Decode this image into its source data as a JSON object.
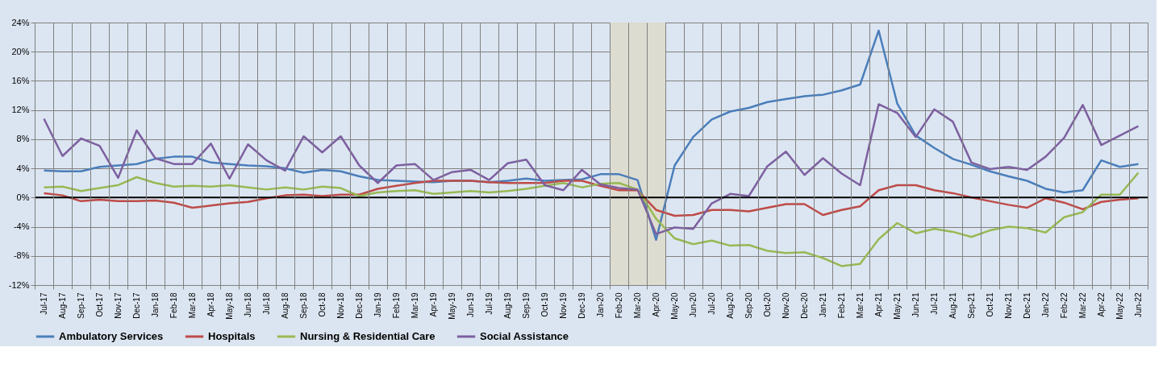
{
  "chart_data": {
    "type": "line",
    "categories": [
      "Jul-17",
      "Aug-17",
      "Sep-17",
      "Oct-17",
      "Nov-17",
      "Dec-17",
      "Jan-18",
      "Feb-18",
      "Mar-18",
      "Apr-18",
      "May-18",
      "Jun-18",
      "Jul-18",
      "Aug-18",
      "Sep-18",
      "Oct-18",
      "Nov-18",
      "Dec-18",
      "Jan-19",
      "Feb-19",
      "Mar-19",
      "Apr-19",
      "May-19",
      "Jun-19",
      "Jul-19",
      "Aug-19",
      "Sep-19",
      "Oct-19",
      "Nov-19",
      "Dec-19",
      "Jan-20",
      "Feb-20",
      "Mar-20",
      "Apr-20",
      "May-20",
      "Jun-20",
      "Jul-20",
      "Aug-20",
      "Sep-20",
      "Oct-20",
      "Nov-20",
      "Dec-20",
      "Jan-21",
      "Feb-21",
      "Mar-21",
      "Apr-21",
      "May-21",
      "Jun-21",
      "Jul-21",
      "Aug-21",
      "Sep-21",
      "Oct-21",
      "Nov-21",
      "Dec-21",
      "Jan-22",
      "Feb-22",
      "Mar-22",
      "Apr-22",
      "May-22",
      "Jun-22"
    ],
    "series": [
      {
        "name": "Ambulatory Services",
        "color": "#4a7ebb",
        "values": [
          3.7,
          3.6,
          3.6,
          4.2,
          4.4,
          4.6,
          5.3,
          5.6,
          5.6,
          4.8,
          4.6,
          4.4,
          4.3,
          4.0,
          3.4,
          3.8,
          3.6,
          2.9,
          2.4,
          2.3,
          2.2,
          2.1,
          2.3,
          2.3,
          2.1,
          2.3,
          2.6,
          2.3,
          2.4,
          2.5,
          3.2,
          3.2,
          2.4,
          -5.8,
          4.4,
          8.3,
          10.7,
          11.8,
          12.3,
          13.1,
          13.5,
          13.9,
          14.1,
          14.7,
          15.5,
          22.9,
          12.9,
          8.5,
          6.8,
          5.3,
          4.5,
          3.6,
          2.9,
          2.3,
          1.2,
          0.7,
          1.0,
          5.1,
          4.2,
          4.6
        ]
      },
      {
        "name": "Hospitals",
        "color": "#be4b48",
        "values": [
          0.6,
          0.3,
          -0.5,
          -0.3,
          -0.5,
          -0.5,
          -0.4,
          -0.7,
          -1.4,
          -1.1,
          -0.8,
          -0.6,
          -0.1,
          0.3,
          0.4,
          0.2,
          0.4,
          0.4,
          1.2,
          1.6,
          2.0,
          2.3,
          2.3,
          2.3,
          2.1,
          2.0,
          2.0,
          2.0,
          2.3,
          2.3,
          1.6,
          1.0,
          1.0,
          -1.7,
          -2.5,
          -2.4,
          -1.7,
          -1.7,
          -1.9,
          -1.4,
          -0.9,
          -0.9,
          -2.4,
          -1.7,
          -1.2,
          1.0,
          1.7,
          1.7,
          1.0,
          0.6,
          0.0,
          -0.5,
          -1.0,
          -1.4,
          -0.1,
          -0.7,
          -1.6,
          -0.6,
          -0.3,
          -0.1
        ]
      },
      {
        "name": "Nursing & Residential Care",
        "color": "#98b954",
        "values": [
          1.4,
          1.5,
          0.9,
          1.3,
          1.7,
          2.8,
          2.0,
          1.5,
          1.6,
          1.5,
          1.7,
          1.4,
          1.1,
          1.4,
          1.1,
          1.5,
          1.3,
          0.2,
          0.7,
          0.9,
          1.0,
          0.5,
          0.7,
          0.9,
          0.7,
          0.9,
          1.2,
          1.6,
          2.0,
          1.4,
          1.9,
          2.0,
          1.1,
          -2.9,
          -5.6,
          -6.4,
          -5.9,
          -6.6,
          -6.5,
          -7.3,
          -7.6,
          -7.5,
          -8.3,
          -9.4,
          -9.1,
          -5.7,
          -3.5,
          -4.9,
          -4.3,
          -4.7,
          -5.4,
          -4.5,
          -4.0,
          -4.2,
          -4.8,
          -2.7,
          -2.0,
          0.4,
          0.4,
          3.4
        ]
      },
      {
        "name": "Social Assistance",
        "color": "#7d60a0",
        "values": [
          10.8,
          5.7,
          8.1,
          7.1,
          2.7,
          9.2,
          5.4,
          4.6,
          4.6,
          7.4,
          2.6,
          7.3,
          5.1,
          3.7,
          8.4,
          6.2,
          8.4,
          4.4,
          2.0,
          4.4,
          4.6,
          2.4,
          3.5,
          3.8,
          2.4,
          4.7,
          5.2,
          1.7,
          1.0,
          3.8,
          1.8,
          1.3,
          1.1,
          -5.0,
          -4.1,
          -4.3,
          -0.8,
          0.5,
          0.2,
          4.3,
          6.3,
          3.1,
          5.4,
          3.3,
          1.7,
          12.8,
          11.6,
          8.3,
          12.1,
          10.4,
          4.8,
          3.9,
          4.2,
          3.8,
          5.6,
          8.2,
          12.7,
          7.2,
          8.5,
          9.8
        ]
      }
    ],
    "ylim": [
      -12,
      24
    ],
    "yticks": [
      {
        "value": -12,
        "label": "-12%"
      },
      {
        "value": -8,
        "label": "-8%"
      },
      {
        "value": -4,
        "label": "-4%"
      },
      {
        "value": 0,
        "label": "0%"
      },
      {
        "value": 4,
        "label": "4%"
      },
      {
        "value": 8,
        "label": "8%"
      },
      {
        "value": 12,
        "label": "12%"
      },
      {
        "value": 16,
        "label": "16%"
      },
      {
        "value": 20,
        "label": "20%"
      },
      {
        "value": 24,
        "label": "24%"
      }
    ],
    "ref_lines": [
      {
        "axis": "y",
        "value": 0,
        "color": "#000000"
      }
    ],
    "bands": [
      {
        "axis": "x",
        "from": "Feb-20",
        "to": "Apr-20",
        "color": "#dddcd0"
      }
    ],
    "grid": true,
    "legend": "bottom",
    "marker": "none",
    "line_style": "solid"
  }
}
